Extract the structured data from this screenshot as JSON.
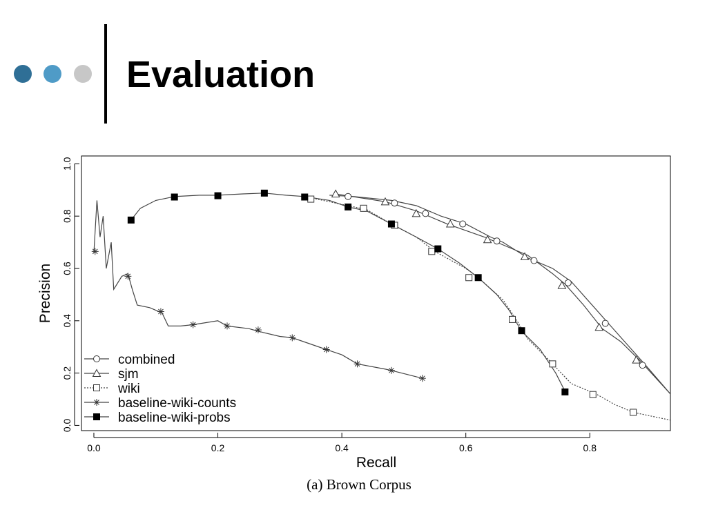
{
  "slide": {
    "title": "Evaluation",
    "dot_colors": [
      "#2f6f96",
      "#4f9bc7",
      "#c7c7c7"
    ]
  },
  "chart_data": {
    "type": "line",
    "caption": "(a) Brown Corpus",
    "xlabel": "Recall",
    "ylabel": "Precision",
    "xlim": [
      -0.02,
      0.93
    ],
    "ylim": [
      -0.02,
      1.03
    ],
    "x_ticks": [
      "0.0",
      "0.2",
      "0.4",
      "0.6",
      "0.8"
    ],
    "y_ticks": [
      "0.0",
      "0.2",
      "0.4",
      "0.6",
      "0.8",
      "1.0"
    ],
    "grid": false,
    "legend_position": "bottom-left",
    "series": [
      {
        "name": "combined",
        "marker": "circle",
        "dash": "solid",
        "points": [
          [
            0.38,
            0.88
          ],
          [
            0.42,
            0.875
          ],
          [
            0.48,
            0.86
          ],
          [
            0.52,
            0.84
          ],
          [
            0.56,
            0.8
          ],
          [
            0.6,
            0.77
          ],
          [
            0.64,
            0.72
          ],
          [
            0.66,
            0.7
          ],
          [
            0.7,
            0.64
          ],
          [
            0.74,
            0.6
          ],
          [
            0.77,
            0.55
          ],
          [
            0.8,
            0.47
          ],
          [
            0.83,
            0.39
          ],
          [
            0.86,
            0.31
          ],
          [
            0.89,
            0.23
          ],
          [
            0.93,
            0.12
          ]
        ],
        "markers": [
          [
            0.41,
            0.875
          ],
          [
            0.485,
            0.85
          ],
          [
            0.535,
            0.81
          ],
          [
            0.595,
            0.77
          ],
          [
            0.65,
            0.705
          ],
          [
            0.71,
            0.63
          ],
          [
            0.765,
            0.545
          ],
          [
            0.825,
            0.39
          ],
          [
            0.885,
            0.23
          ]
        ]
      },
      {
        "name": "sjm",
        "marker": "triangle",
        "dash": "solid",
        "points": [
          [
            0.39,
            0.885
          ],
          [
            0.43,
            0.87
          ],
          [
            0.47,
            0.855
          ],
          [
            0.52,
            0.82
          ],
          [
            0.57,
            0.77
          ],
          [
            0.63,
            0.72
          ],
          [
            0.7,
            0.65
          ],
          [
            0.74,
            0.58
          ],
          [
            0.76,
            0.54
          ],
          [
            0.79,
            0.46
          ],
          [
            0.82,
            0.37
          ],
          [
            0.85,
            0.32
          ],
          [
            0.88,
            0.25
          ],
          [
            0.93,
            0.12
          ]
        ],
        "markers": [
          [
            0.39,
            0.885
          ],
          [
            0.47,
            0.855
          ],
          [
            0.52,
            0.81
          ],
          [
            0.575,
            0.77
          ],
          [
            0.635,
            0.71
          ],
          [
            0.695,
            0.645
          ],
          [
            0.755,
            0.535
          ],
          [
            0.815,
            0.375
          ],
          [
            0.875,
            0.25
          ]
        ]
      },
      {
        "name": "wiki",
        "marker": "square-open",
        "dash": "dotted",
        "points": [
          [
            0.34,
            0.875
          ],
          [
            0.4,
            0.845
          ],
          [
            0.44,
            0.825
          ],
          [
            0.48,
            0.77
          ],
          [
            0.52,
            0.72
          ],
          [
            0.55,
            0.665
          ],
          [
            0.6,
            0.6
          ],
          [
            0.62,
            0.565
          ],
          [
            0.66,
            0.48
          ],
          [
            0.68,
            0.41
          ],
          [
            0.7,
            0.33
          ],
          [
            0.74,
            0.235
          ],
          [
            0.77,
            0.16
          ],
          [
            0.81,
            0.12
          ],
          [
            0.84,
            0.08
          ],
          [
            0.87,
            0.05
          ],
          [
            0.93,
            0.02
          ]
        ],
        "markers": [
          [
            0.35,
            0.865
          ],
          [
            0.435,
            0.83
          ],
          [
            0.485,
            0.765
          ],
          [
            0.545,
            0.665
          ],
          [
            0.605,
            0.565
          ],
          [
            0.675,
            0.405
          ],
          [
            0.74,
            0.235
          ],
          [
            0.805,
            0.118
          ],
          [
            0.87,
            0.05
          ]
        ]
      },
      {
        "name": "baseline-wiki-counts",
        "marker": "asterisk",
        "dash": "solid",
        "points": [
          [
            0.0,
            0.66
          ],
          [
            0.005,
            0.86
          ],
          [
            0.01,
            0.72
          ],
          [
            0.015,
            0.8
          ],
          [
            0.02,
            0.6
          ],
          [
            0.028,
            0.7
          ],
          [
            0.032,
            0.52
          ],
          [
            0.045,
            0.57
          ],
          [
            0.055,
            0.58
          ],
          [
            0.062,
            0.52
          ],
          [
            0.07,
            0.46
          ],
          [
            0.09,
            0.45
          ],
          [
            0.11,
            0.43
          ],
          [
            0.12,
            0.38
          ],
          [
            0.14,
            0.38
          ],
          [
            0.16,
            0.385
          ],
          [
            0.2,
            0.4
          ],
          [
            0.215,
            0.38
          ],
          [
            0.25,
            0.37
          ],
          [
            0.265,
            0.36
          ],
          [
            0.3,
            0.34
          ],
          [
            0.32,
            0.335
          ],
          [
            0.375,
            0.29
          ],
          [
            0.4,
            0.27
          ],
          [
            0.425,
            0.235
          ],
          [
            0.47,
            0.215
          ],
          [
            0.48,
            0.21
          ],
          [
            0.53,
            0.18
          ]
        ],
        "markers": [
          [
            0.002,
            0.665
          ],
          [
            0.055,
            0.57
          ],
          [
            0.108,
            0.435
          ],
          [
            0.16,
            0.385
          ],
          [
            0.215,
            0.38
          ],
          [
            0.265,
            0.365
          ],
          [
            0.32,
            0.335
          ],
          [
            0.375,
            0.29
          ],
          [
            0.425,
            0.235
          ],
          [
            0.48,
            0.21
          ],
          [
            0.53,
            0.18
          ]
        ]
      },
      {
        "name": "baseline-wiki-probs",
        "marker": "square-filled",
        "dash": "solid",
        "points": [
          [
            0.06,
            0.785
          ],
          [
            0.075,
            0.83
          ],
          [
            0.1,
            0.86
          ],
          [
            0.13,
            0.875
          ],
          [
            0.17,
            0.88
          ],
          [
            0.2,
            0.88
          ],
          [
            0.24,
            0.885
          ],
          [
            0.275,
            0.888
          ],
          [
            0.31,
            0.88
          ],
          [
            0.34,
            0.875
          ],
          [
            0.38,
            0.86
          ],
          [
            0.41,
            0.835
          ],
          [
            0.44,
            0.82
          ],
          [
            0.48,
            0.77
          ],
          [
            0.52,
            0.72
          ],
          [
            0.555,
            0.675
          ],
          [
            0.59,
            0.62
          ],
          [
            0.62,
            0.565
          ],
          [
            0.65,
            0.5
          ],
          [
            0.67,
            0.44
          ],
          [
            0.69,
            0.36
          ],
          [
            0.72,
            0.29
          ],
          [
            0.745,
            0.2
          ],
          [
            0.76,
            0.13
          ]
        ],
        "markers": [
          [
            0.06,
            0.785
          ],
          [
            0.13,
            0.873
          ],
          [
            0.2,
            0.878
          ],
          [
            0.275,
            0.888
          ],
          [
            0.34,
            0.873
          ],
          [
            0.41,
            0.835
          ],
          [
            0.48,
            0.77
          ],
          [
            0.555,
            0.675
          ],
          [
            0.62,
            0.565
          ],
          [
            0.69,
            0.362
          ],
          [
            0.76,
            0.128
          ]
        ]
      }
    ]
  }
}
